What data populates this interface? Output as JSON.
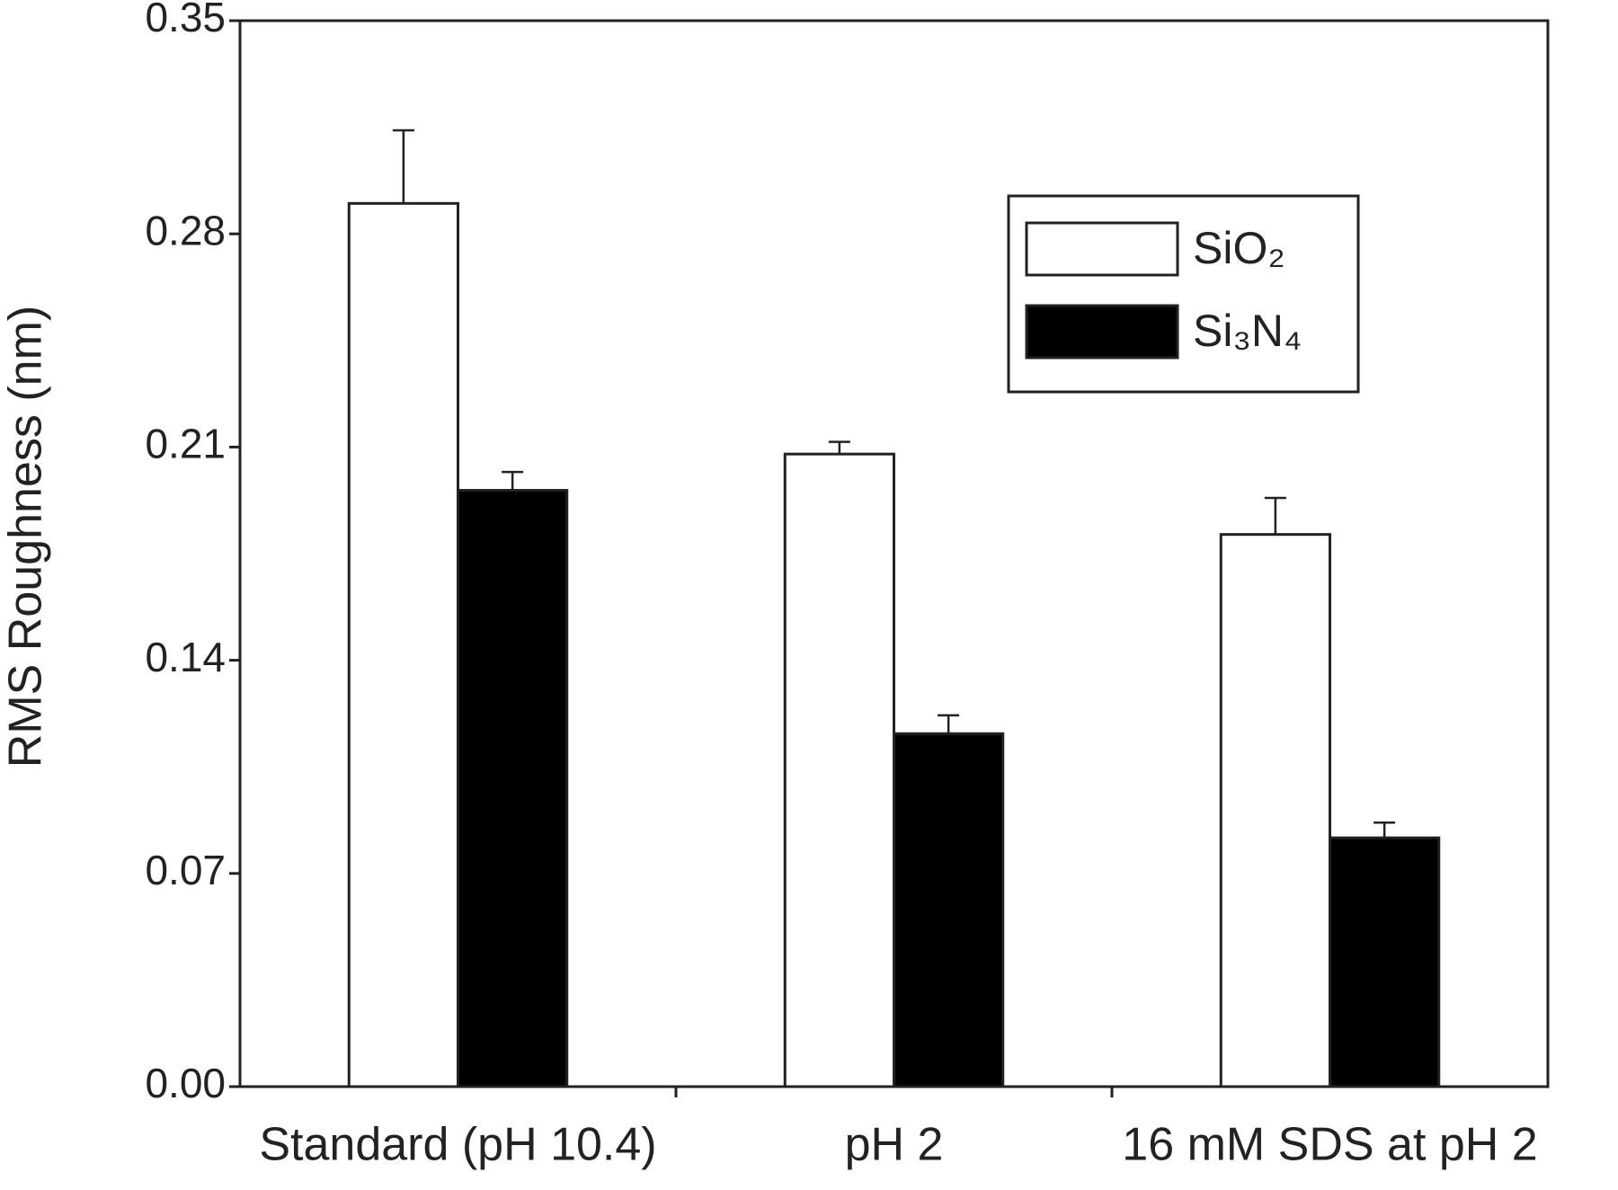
{
  "chart_data": {
    "type": "bar",
    "y_label": "RMS Roughness (nm)",
    "categories": [
      "Standard (pH 10.4)",
      "pH 2",
      "16 mM SDS at pH 2"
    ],
    "series": [
      {
        "name": "SiO₂",
        "color": "#ffffff",
        "values": [
          0.29,
          0.2077,
          0.1813
        ],
        "errors": [
          0.024,
          0.004,
          0.012
        ]
      },
      {
        "name": "Si₃N₄",
        "color": "#000000",
        "values": [
          0.1958,
          0.1159,
          0.0817
        ],
        "errors": [
          0.006,
          0.006,
          0.005
        ]
      }
    ],
    "ylim": [
      0,
      0.35
    ],
    "yticks": [
      {
        "value": 0,
        "label": "0.00"
      },
      0.07,
      0.14,
      0.21,
      0.28,
      0.35
    ],
    "legend": "upper right"
  }
}
